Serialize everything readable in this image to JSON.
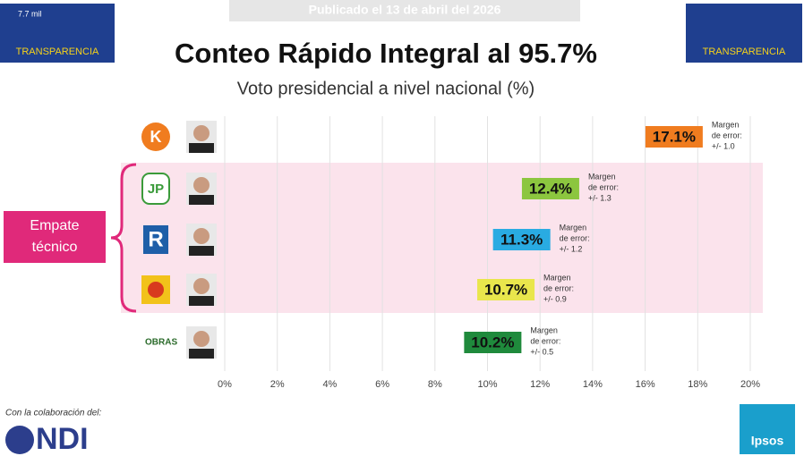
{
  "chart_data": {
    "type": "dot-label",
    "title": "Conteo Rápido Integral al 95.7%",
    "subtitle": "Voto presidencial a nivel nacional (%)",
    "banner": "Publicado el 13 de abril del 2026",
    "views": "7.7 mil",
    "logo_text": "TRANSPARENCIA",
    "categories": [
      null,
      null,
      null,
      null,
      null
    ],
    "party_logos": [
      "K",
      "JP",
      "R",
      null,
      "OBRAS"
    ],
    "values": [
      17.1,
      12.4,
      11.3,
      10.7,
      10.2
    ],
    "value_labels": [
      "17.1%",
      "12.4%",
      "11.3%",
      "10.7%",
      "10.2%"
    ],
    "colors": [
      "#f07c1f",
      "#8cc63f",
      "#29abe2",
      "#e9e64c",
      "#1f8a3c"
    ],
    "error_title": [
      "Margen",
      "de error:"
    ],
    "errors": [
      1.0,
      1.3,
      1.2,
      0.9,
      0.5
    ],
    "error_labels": [
      "+/- 1.0",
      "+/- 1.3",
      "+/- 1.2",
      "+/- 0.9",
      "+/- 0.5"
    ],
    "annotation": [
      "Empate",
      "técnico"
    ],
    "xlim": [
      0,
      20
    ],
    "xticks": [
      {
        "value": 0,
        "label": "0%"
      },
      {
        "value": 2,
        "label": "2%"
      },
      {
        "value": 4,
        "label": "4%"
      },
      {
        "value": 6,
        "label": "6%"
      },
      {
        "value": 8,
        "label": "8%"
      },
      {
        "value": 10,
        "label": "10%"
      },
      {
        "value": 12,
        "label": "12%"
      },
      {
        "value": 14,
        "label": "14%"
      },
      {
        "value": 16,
        "label": "16%"
      },
      {
        "value": 18,
        "label": "18%"
      },
      {
        "value": 20,
        "label": "20%"
      }
    ],
    "grid": true,
    "footer": "Con la colaboración del:",
    "partner": "NDI",
    "pollster": "Ipsos"
  }
}
